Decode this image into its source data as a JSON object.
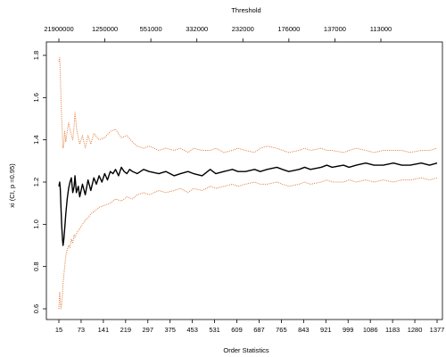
{
  "chart_data": {
    "type": "line",
    "title": "",
    "xlabel": "Order Statistics",
    "ylabel": "xi (CI, p =0.95)",
    "top_axis_label": "Threshold",
    "xlim": [
      15,
      1377
    ],
    "ylim": [
      0.58,
      1.82
    ],
    "x_ticks": [
      15,
      73,
      141,
      219,
      297,
      375,
      453,
      531,
      609,
      687,
      765,
      843,
      921,
      999,
      1086,
      1183,
      1280,
      1377
    ],
    "y_ticks": [
      0.6,
      0.8,
      1.0,
      1.2,
      1.4,
      1.6,
      1.8
    ],
    "top_ticks": [
      "21900000",
      "1250000",
      "551000",
      "332000",
      "232000",
      "176000",
      "137000",
      "113000"
    ],
    "grid": false,
    "series": [
      {
        "role": "estimate",
        "color": "#000000",
        "style": "solid",
        "x": [
          15,
          18,
          20,
          22,
          25,
          28,
          30,
          33,
          36,
          40,
          45,
          50,
          55,
          60,
          65,
          70,
          73,
          78,
          85,
          90,
          100,
          110,
          120,
          130,
          141,
          150,
          160,
          170,
          180,
          190,
          200,
          210,
          219,
          230,
          240,
          250,
          260,
          270,
          280,
          297,
          320,
          340,
          375,
          400,
          430,
          453,
          480,
          500,
          531,
          560,
          580,
          609,
          640,
          660,
          687,
          720,
          740,
          765,
          800,
          820,
          843,
          880,
          900,
          921,
          960,
          980,
          999,
          1040,
          1060,
          1086,
          1120,
          1150,
          1183,
          1220,
          1250,
          1280,
          1320,
          1350,
          1377
        ],
        "y": [
          1.18,
          1.2,
          1.17,
          1.1,
          1.0,
          0.93,
          0.9,
          0.93,
          0.98,
          1.05,
          1.12,
          1.17,
          1.2,
          1.22,
          1.15,
          1.18,
          1.23,
          1.15,
          1.18,
          1.13,
          1.19,
          1.14,
          1.21,
          1.16,
          1.22,
          1.19,
          1.23,
          1.2,
          1.24,
          1.21,
          1.25,
          1.24,
          1.26,
          1.23,
          1.27,
          1.25,
          1.24,
          1.26,
          1.25,
          1.24,
          1.26,
          1.25,
          1.24,
          1.25,
          1.23,
          1.24,
          1.25,
          1.24,
          1.23,
          1.26,
          1.24,
          1.25,
          1.26,
          1.25,
          1.25,
          1.26,
          1.25,
          1.26,
          1.27,
          1.26,
          1.25,
          1.26,
          1.27,
          1.26,
          1.27,
          1.28,
          1.27,
          1.28,
          1.27,
          1.28,
          1.29,
          1.28,
          1.28,
          1.29,
          1.28,
          1.28,
          1.29,
          1.28,
          1.29
        ]
      },
      {
        "role": "upper-ci",
        "color": "#e07b39",
        "style": "dotted",
        "x": [
          15,
          18,
          20,
          22,
          25,
          28,
          30,
          33,
          36,
          40,
          45,
          50,
          55,
          60,
          65,
          70,
          73,
          80,
          90,
          100,
          110,
          120,
          130,
          141,
          160,
          180,
          200,
          219,
          240,
          260,
          280,
          297,
          320,
          340,
          375,
          400,
          430,
          453,
          480,
          500,
          531,
          560,
          580,
          609,
          640,
          660,
          687,
          720,
          740,
          765,
          800,
          820,
          843,
          880,
          900,
          921,
          960,
          980,
          999,
          1040,
          1060,
          1086,
          1120,
          1150,
          1183,
          1220,
          1250,
          1280,
          1320,
          1350,
          1377
        ],
        "y": [
          1.77,
          1.79,
          1.72,
          1.62,
          1.5,
          1.42,
          1.36,
          1.38,
          1.44,
          1.39,
          1.44,
          1.48,
          1.45,
          1.42,
          1.4,
          1.47,
          1.53,
          1.44,
          1.38,
          1.42,
          1.36,
          1.42,
          1.38,
          1.43,
          1.4,
          1.41,
          1.44,
          1.45,
          1.41,
          1.42,
          1.39,
          1.37,
          1.36,
          1.37,
          1.35,
          1.36,
          1.35,
          1.36,
          1.34,
          1.36,
          1.35,
          1.35,
          1.36,
          1.34,
          1.35,
          1.36,
          1.35,
          1.34,
          1.36,
          1.37,
          1.36,
          1.35,
          1.34,
          1.35,
          1.36,
          1.35,
          1.36,
          1.35,
          1.35,
          1.34,
          1.35,
          1.36,
          1.35,
          1.34,
          1.35,
          1.35,
          1.35,
          1.34,
          1.35,
          1.35,
          1.36
        ]
      },
      {
        "role": "lower-ci",
        "color": "#e07b39",
        "style": "dotted",
        "x": [
          15,
          18,
          20,
          22,
          25,
          28,
          30,
          33,
          36,
          40,
          45,
          50,
          55,
          60,
          65,
          70,
          73,
          80,
          90,
          100,
          110,
          120,
          130,
          141,
          160,
          180,
          200,
          219,
          240,
          260,
          280,
          297,
          320,
          340,
          375,
          400,
          430,
          453,
          480,
          500,
          531,
          560,
          580,
          609,
          640,
          660,
          687,
          720,
          740,
          765,
          800,
          820,
          843,
          880,
          900,
          921,
          960,
          980,
          999,
          1040,
          1060,
          1086,
          1120,
          1150,
          1183,
          1220,
          1250,
          1280,
          1320,
          1350,
          1377
        ],
        "y": [
          0.6,
          0.68,
          0.64,
          0.6,
          0.62,
          0.67,
          0.72,
          0.76,
          0.8,
          0.85,
          0.88,
          0.9,
          0.89,
          0.93,
          0.91,
          0.95,
          0.94,
          0.96,
          0.98,
          1.0,
          1.02,
          1.03,
          1.05,
          1.06,
          1.08,
          1.09,
          1.1,
          1.12,
          1.11,
          1.13,
          1.12,
          1.14,
          1.15,
          1.14,
          1.16,
          1.15,
          1.16,
          1.17,
          1.15,
          1.17,
          1.16,
          1.18,
          1.17,
          1.18,
          1.19,
          1.18,
          1.19,
          1.2,
          1.19,
          1.19,
          1.2,
          1.19,
          1.18,
          1.19,
          1.2,
          1.19,
          1.2,
          1.21,
          1.2,
          1.2,
          1.21,
          1.2,
          1.21,
          1.2,
          1.21,
          1.2,
          1.21,
          1.21,
          1.22,
          1.21,
          1.22
        ]
      }
    ]
  }
}
